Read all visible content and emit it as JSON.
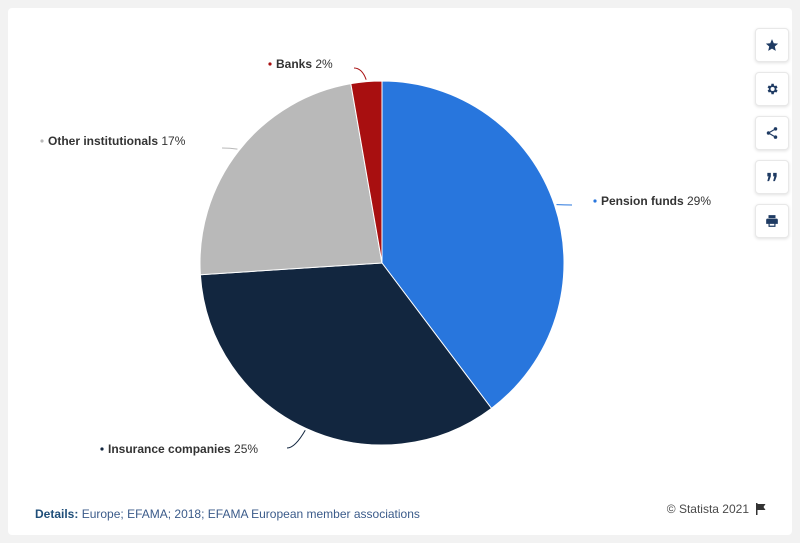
{
  "chart_data": {
    "type": "pie",
    "slices": [
      {
        "label": "Pension funds",
        "value": 29,
        "value_label": "29%",
        "color": "#2876dd"
      },
      {
        "label": "Insurance companies",
        "value": 25,
        "value_label": "25%",
        "color": "#12263f"
      },
      {
        "label": "Other institutionals",
        "value": 17,
        "value_label": "17%",
        "color": "#b9b9b9"
      },
      {
        "label": "Banks",
        "value": 2,
        "value_label": "2%",
        "color": "#a80f10"
      }
    ],
    "start_angle_deg": 0,
    "direction": "clockwise",
    "legend": "none"
  },
  "toolbar": {
    "icons": [
      "star-icon",
      "gear-icon",
      "share-icon",
      "quote-icon",
      "print-icon"
    ]
  },
  "footer": {
    "details_label": "Details:",
    "details_text": "Europe; EFAMA; 2018; EFAMA European member associations",
    "credit": "© Statista 2021"
  }
}
